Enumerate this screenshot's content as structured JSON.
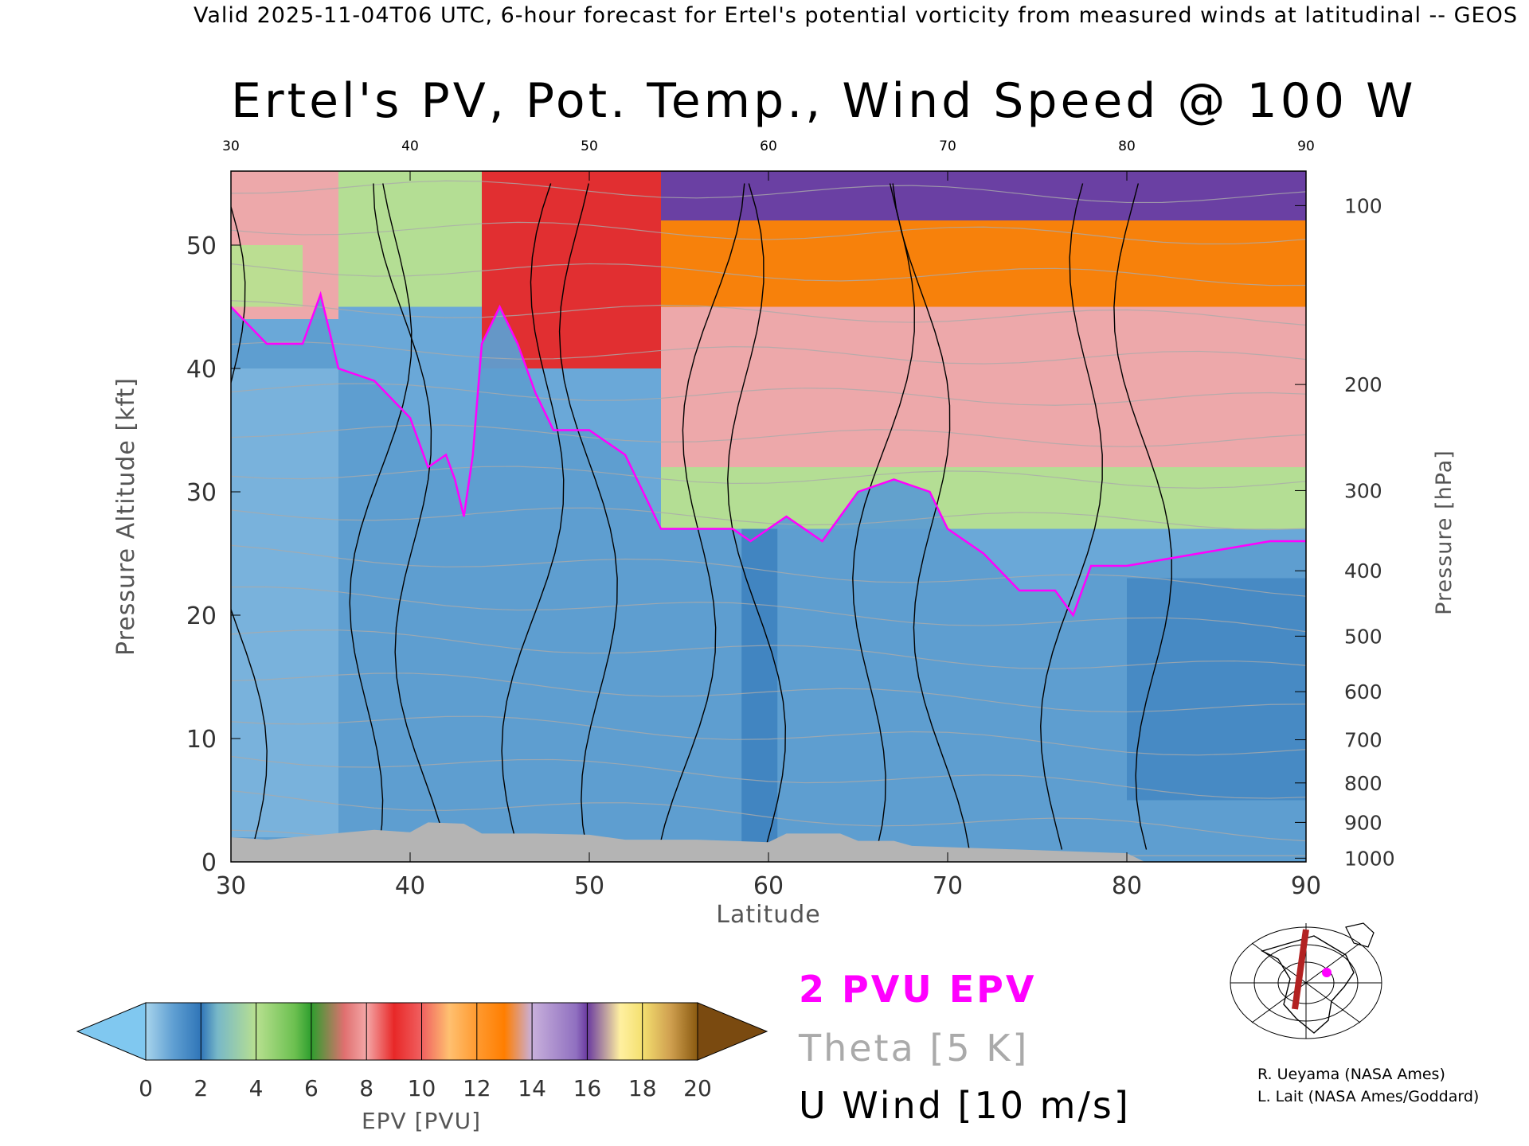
{
  "header": {
    "subtitle": "Valid 2025-11-04T06 UTC, 6-hour forecast for Ertel's potential vorticity from measured winds at latitudinal -- GEOS"
  },
  "chart_data": {
    "type": "heatmap",
    "title": "Ertel's PV, Pot. Temp., Wind Speed @ 100 W",
    "xlabel": "Latitude",
    "ylabel": "Pressure Altitude [kft]",
    "ylabel_right": "Pressure [hPa]",
    "xlim": [
      30,
      90
    ],
    "ylim": [
      0,
      56
    ],
    "x_ticks": [
      30,
      40,
      50,
      60,
      70,
      80,
      90
    ],
    "y_ticks": [
      0,
      10,
      20,
      30,
      40,
      50
    ],
    "top_ticks": [
      30,
      40,
      50,
      60,
      70,
      80,
      90
    ],
    "pressure_ticks": [
      {
        "label": "100",
        "kft": 53.2
      },
      {
        "label": "200",
        "kft": 38.7
      },
      {
        "label": "300",
        "kft": 30.1
      },
      {
        "label": "400",
        "kft": 23.6
      },
      {
        "label": "500",
        "kft": 18.3
      },
      {
        "label": "600",
        "kft": 13.8
      },
      {
        "label": "700",
        "kft": 9.9
      },
      {
        "label": "800",
        "kft": 6.4
      },
      {
        "label": "900",
        "kft": 3.2
      },
      {
        "label": "1000",
        "kft": 0.3
      }
    ],
    "grid": false,
    "colorbar": {
      "label": "EPV [PVU]",
      "ticks": [
        0,
        2,
        4,
        6,
        8,
        10,
        12,
        14,
        16,
        18,
        20
      ],
      "range": [
        0,
        20
      ],
      "extend": "both"
    },
    "tropopause_2pvu_kft": [
      [
        30,
        45
      ],
      [
        32,
        42
      ],
      [
        34,
        42
      ],
      [
        35,
        46
      ],
      [
        36,
        40
      ],
      [
        38,
        39
      ],
      [
        40,
        36
      ],
      [
        41,
        32
      ],
      [
        42,
        33
      ],
      [
        42.5,
        31
      ],
      [
        43,
        28
      ],
      [
        43.5,
        33
      ],
      [
        44,
        42
      ],
      [
        45,
        45
      ],
      [
        46,
        42
      ],
      [
        47,
        38
      ],
      [
        48,
        35
      ],
      [
        50,
        35
      ],
      [
        52,
        33
      ],
      [
        53,
        30
      ],
      [
        54,
        27
      ],
      [
        56,
        27
      ],
      [
        58,
        27
      ],
      [
        59,
        26
      ],
      [
        61,
        28
      ],
      [
        63,
        26
      ],
      [
        65,
        30
      ],
      [
        67,
        31
      ],
      [
        69,
        30
      ],
      [
        70,
        27
      ],
      [
        72,
        25
      ],
      [
        74,
        22
      ],
      [
        76,
        22
      ],
      [
        77,
        20
      ],
      [
        78,
        24
      ],
      [
        80,
        24
      ],
      [
        84,
        25
      ],
      [
        88,
        26
      ],
      [
        90,
        26
      ]
    ],
    "epv_field": [
      {
        "top": 56,
        "bottom": 44,
        "x0": 30,
        "x1": 36,
        "value": 8
      },
      {
        "top": 50,
        "bottom": 45,
        "x0": 30,
        "x1": 34,
        "value": 4
      },
      {
        "top": 56,
        "bottom": 45,
        "x0": 36,
        "x1": 44,
        "value": 4
      },
      {
        "top": 56,
        "bottom": 40,
        "x0": 44,
        "x1": 54,
        "value": 9
      },
      {
        "top": 56,
        "bottom": 52,
        "x0": 54,
        "x1": 90,
        "value": 16
      },
      {
        "top": 52,
        "bottom": 45,
        "x0": 54,
        "x1": 90,
        "value": 12
      },
      {
        "top": 45,
        "bottom": 32,
        "x0": 54,
        "x1": 90,
        "value": 8
      },
      {
        "top": 32,
        "bottom": 27,
        "x0": 54,
        "x1": 90,
        "value": 4
      }
    ],
    "theta_contours_K": [
      300,
      305,
      310,
      315,
      320,
      325,
      330,
      340,
      350,
      360,
      370,
      380,
      400,
      500,
      600,
      700,
      800
    ],
    "theta_label": "Theta [5 K]",
    "u_wind_contours_ms": [
      -10,
      0,
      10,
      20,
      30,
      40,
      50
    ],
    "u_wind_label": "U Wind [10 m/s]",
    "tropopause_label": "2 PVU EPV",
    "colors": {
      "tropopause": "#ff00ff",
      "theta": "#aaaaaa",
      "u_wind": "#000000",
      "terrain": "#b4b4b4",
      "below_min": "#80c8f0",
      "above_max": "#7a4a10"
    }
  },
  "credits": [
    "R. Ueyama (NASA Ames)",
    "L. Lait (NASA Ames/Goddard)"
  ]
}
